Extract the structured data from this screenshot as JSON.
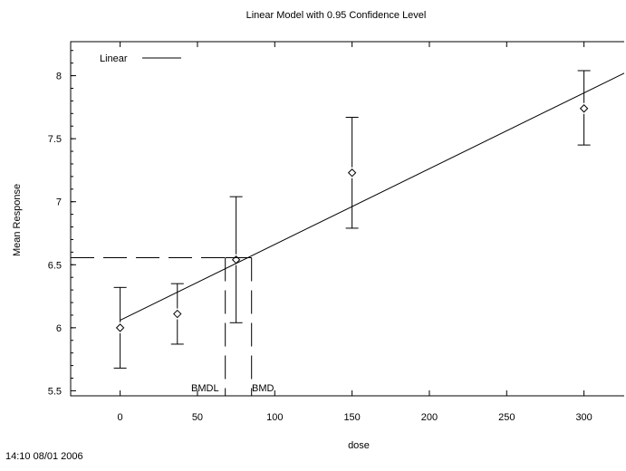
{
  "chart_data": {
    "type": "scatter",
    "title": "Linear Model with 0.95 Confidence Level",
    "xlabel": "dose",
    "ylabel": "Mean Response",
    "xlim": [
      -32,
      326
    ],
    "ylim": [
      5.46,
      8.27
    ],
    "x_ticks": [
      0,
      50,
      100,
      150,
      200,
      250,
      300
    ],
    "y_ticks": [
      5.5,
      6,
      6.5,
      7,
      7.5,
      8
    ],
    "y_tick_labels": [
      "5.5",
      "6",
      "6.5",
      "7",
      "7.5",
      "8"
    ],
    "grid": false,
    "legend": {
      "position": "top-left",
      "entries": [
        "Linear"
      ]
    },
    "observations": [
      {
        "x": 0,
        "mean": 6.0,
        "lower": 5.68,
        "upper": 6.32
      },
      {
        "x": 37,
        "mean": 6.11,
        "lower": 5.87,
        "upper": 6.35
      },
      {
        "x": 75,
        "mean": 6.54,
        "lower": 6.04,
        "upper": 7.04
      },
      {
        "x": 150,
        "mean": 7.23,
        "lower": 6.79,
        "upper": 7.67
      },
      {
        "x": 300,
        "mean": 7.74,
        "lower": 7.45,
        "upper": 8.04
      }
    ],
    "series": [
      {
        "name": "Linear",
        "x": [
          0,
          326
        ],
        "y": [
          6.06,
          8.02
        ]
      }
    ],
    "bmd_response": 6.556,
    "bmdl": 68,
    "bmd": 85,
    "annotations": [
      "BMDL",
      "BMD"
    ]
  },
  "timestamp": "14:10 08/01 2006"
}
